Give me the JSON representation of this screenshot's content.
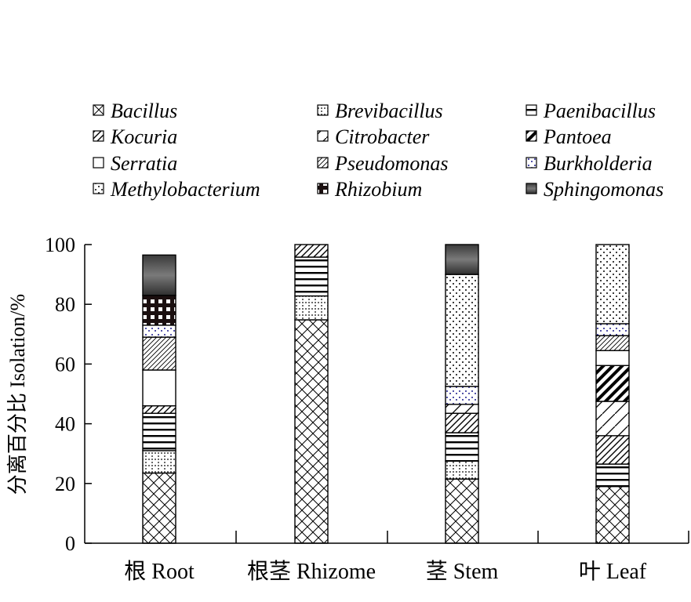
{
  "chart_data": {
    "type": "bar",
    "stacked": true,
    "title": "",
    "ylabel": "分离百分比 Isolation/%",
    "xlabel": "",
    "ylim": [
      0,
      100
    ],
    "yticks": [
      "0",
      "20",
      "40",
      "60",
      "80",
      "100"
    ],
    "grid": false,
    "legend_position": "top",
    "categories": [
      "根 Root",
      "根茎 Rhizome",
      "茎 Stem",
      "叶 Leaf"
    ],
    "series": [
      {
        "name": "Bacillus",
        "values": [
          23.5,
          74.8,
          21.5,
          19.0
        ]
      },
      {
        "name": "Brevibacillus",
        "values": [
          7.5,
          8.0,
          6.0,
          0
        ]
      },
      {
        "name": "Paenibacillus",
        "values": [
          12.5,
          13.0,
          9.5,
          7.5
        ]
      },
      {
        "name": "Kocuria",
        "values": [
          2.5,
          4.2,
          6.5,
          9.5
        ]
      },
      {
        "name": "Citrobacter",
        "values": [
          0,
          0,
          3.0,
          11.5
        ]
      },
      {
        "name": "Pantoea",
        "values": [
          0,
          0,
          0,
          12.0
        ]
      },
      {
        "name": "Serratia",
        "values": [
          12.0,
          0,
          0,
          5.0
        ]
      },
      {
        "name": "Pseudomonas",
        "values": [
          11.0,
          0,
          0,
          5.0
        ]
      },
      {
        "name": "Burkholderia",
        "values": [
          4.0,
          0,
          6.0,
          4.0
        ]
      },
      {
        "name": "Methylobacterium",
        "values": [
          0,
          0,
          37.5,
          26.5
        ]
      },
      {
        "name": "Rhizobium",
        "values": [
          10.0,
          0,
          0,
          0
        ]
      },
      {
        "name": "Sphingomonas",
        "values": [
          13.5,
          0,
          10.0,
          0
        ]
      }
    ]
  },
  "colors": {
    "ink": "#000000",
    "burkholderia_dots": "#1a1a8c"
  }
}
